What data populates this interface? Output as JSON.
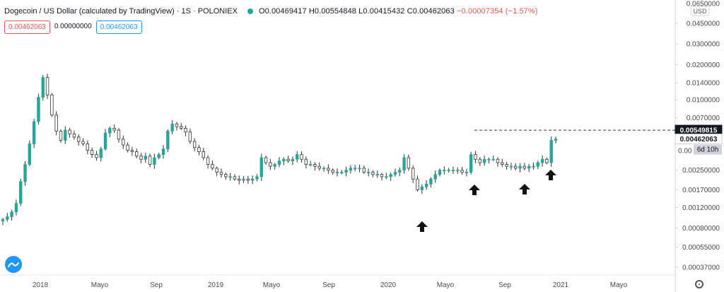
{
  "header": {
    "title": "Dogecoin / US Dollar (calculated by TradingView) · 1S · POLONIEX",
    "ohlc_pos": "O0.00469417 H0.00554848 L0.00415432 C0.00462063",
    "change": "−0.00007354 (−1.57%)"
  },
  "pills": {
    "sell": "0.00462063",
    "spread": "0.00000000",
    "buy": "0.00462063"
  },
  "axis": {
    "currency": "USD",
    "top_partial": "0.0650000"
  },
  "price_labels": {
    "resistance": "0.00549815",
    "last": "0.00462063",
    "countdown": "6d 10h",
    "partial": "0.00"
  },
  "chart_data": {
    "type": "candlestick",
    "title": "Dogecoin / US Dollar (calculated by TradingView) · 1S · POLONIEX",
    "y_scale": "log",
    "y_ticks": [
      "0.0450000",
      "0.0300000",
      "0.0200000",
      "0.0140000",
      "0.0100000",
      "0.0070000",
      "0.00250000",
      "0.00170000",
      "0.00120000",
      "0.00080000",
      "0.00055000",
      "0.00037000"
    ],
    "x_ticks": [
      "2018",
      "Mayo",
      "Sep",
      "2019",
      "Mayo",
      "Sep",
      "2020",
      "Mayo",
      "Sep",
      "2021",
      "Mayo"
    ],
    "horizontal_line": 0.00549815,
    "markers": [
      "up-arrow",
      "up-arrow",
      "up-arrow",
      "up-arrow"
    ],
    "close_series": [
      0.00095,
      0.001,
      0.0011,
      0.0013,
      0.002,
      0.0028,
      0.0042,
      0.0065,
      0.0105,
      0.0155,
      0.011,
      0.0074,
      0.0054,
      0.0045,
      0.0055,
      0.0051,
      0.0048,
      0.0044,
      0.0042,
      0.0037,
      0.0034,
      0.0032,
      0.0038,
      0.0052,
      0.0057,
      0.0055,
      0.0046,
      0.0041,
      0.0037,
      0.0036,
      0.0033,
      0.0031,
      0.0033,
      0.0028,
      0.0032,
      0.0034,
      0.0038,
      0.0054,
      0.0062,
      0.0059,
      0.0057,
      0.0053,
      0.0044,
      0.0039,
      0.0036,
      0.0032,
      0.0028,
      0.0026,
      0.0024,
      0.0023,
      0.0022,
      0.0022,
      0.0021,
      0.00205,
      0.0021,
      0.00205,
      0.0021,
      0.0022,
      0.0032,
      0.0029,
      0.0027,
      0.0028,
      0.003,
      0.0031,
      0.003,
      0.0031,
      0.0034,
      0.0031,
      0.0028,
      0.0028,
      0.0027,
      0.0026,
      0.0026,
      0.0025,
      0.0024,
      0.0024,
      0.0024,
      0.0025,
      0.0026,
      0.0026,
      0.0026,
      0.0024,
      0.0024,
      0.0023,
      0.0023,
      0.0022,
      0.0022,
      0.0023,
      0.0024,
      0.0025,
      0.0032,
      0.0026,
      0.0021,
      0.0017,
      0.0018,
      0.0019,
      0.0021,
      0.0023,
      0.0025,
      0.0025,
      0.0025,
      0.0025,
      0.0025,
      0.0024,
      0.0024,
      0.0034,
      0.0031,
      0.0029,
      0.0031,
      0.0031,
      0.0031,
      0.0029,
      0.0028,
      0.0027,
      0.0027,
      0.0026,
      0.0027,
      0.0026,
      0.0027,
      0.0027,
      0.0029,
      0.0031,
      0.0029,
      0.0045,
      0.00462
    ]
  }
}
